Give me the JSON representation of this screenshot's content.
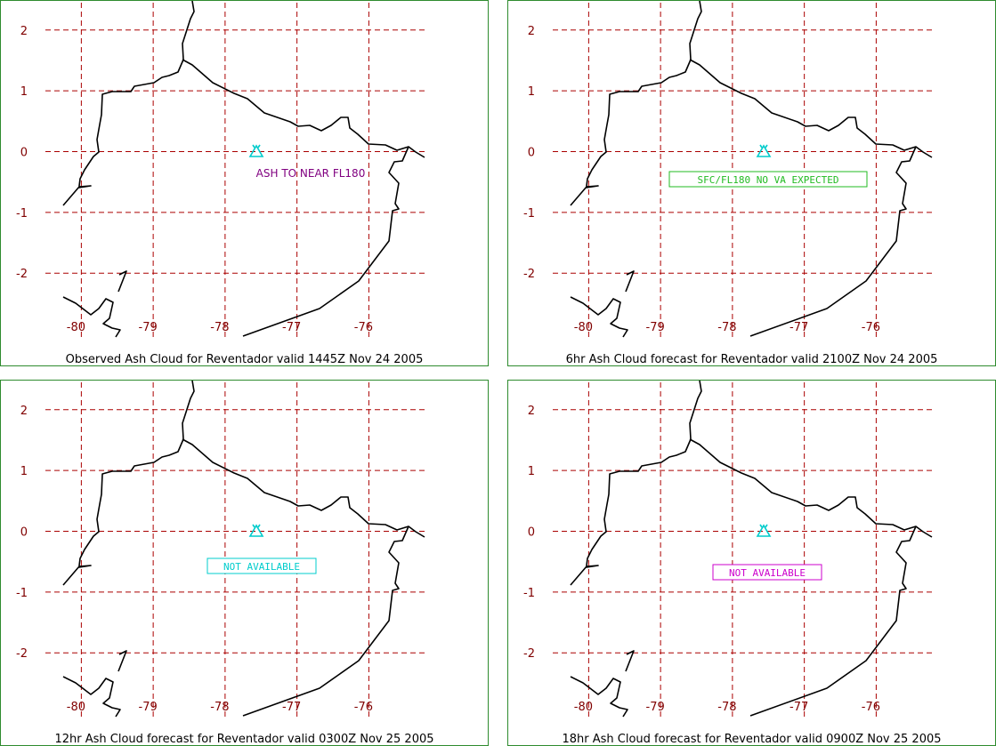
{
  "panels": [
    {
      "id": "observed",
      "caption": "Observed Ash Cloud for Reventador valid 1445Z Nov 24 2005",
      "label": "ASH TO NEAR FL180",
      "label_color": "#800080",
      "label_boxed": false
    },
    {
      "id": "forecast-6hr",
      "caption": "6hr Ash Cloud forecast for Reventador valid 2100Z Nov 24 2005",
      "label": "SFC/FL180 NO VA EXPECTED",
      "label_color": "#22bb22",
      "label_boxed": true
    },
    {
      "id": "forecast-12hr",
      "caption": "12hr Ash Cloud forecast for Reventador valid 0300Z Nov 25 2005",
      "label": "NOT AVAILABLE",
      "label_color": "#00cccc",
      "label_boxed": true
    },
    {
      "id": "forecast-18hr",
      "caption": "18hr Ash Cloud forecast for Reventador valid 0900Z Nov 25 2005",
      "label": "NOT AVAILABLE",
      "label_color": "#cc00cc",
      "label_boxed": true
    }
  ],
  "axes": {
    "lat_labels": [
      "2",
      "1",
      "0",
      "-1",
      "-2"
    ],
    "lon_labels": [
      "-80",
      "-79",
      "-78",
      "-77",
      "-76"
    ]
  },
  "colors": {
    "grid": "#aa0000",
    "axis_label": "#800000",
    "coastline": "#000000",
    "volcano": "#00cccc",
    "panel_border": "#2e8b2e"
  },
  "volcano_icon": "volcano-icon"
}
